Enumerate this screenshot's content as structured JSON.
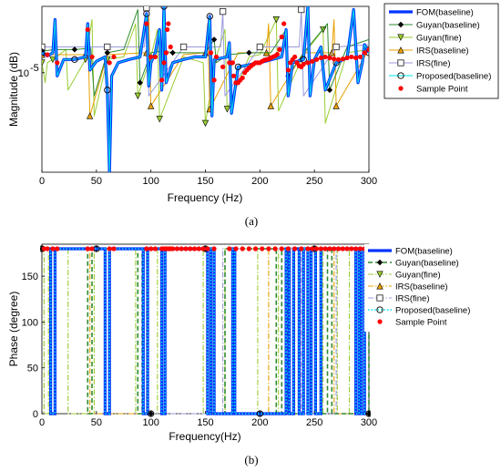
{
  "chart_data": [
    {
      "type": "line",
      "caption": "(a)",
      "xlabel": "Frequency (Hz)",
      "ylabel": "Magnitude (dB)",
      "xlim": [
        0,
        300
      ],
      "xticks": [
        0,
        50,
        100,
        150,
        200,
        250,
        300
      ],
      "yscale": "log",
      "yticks": [
        {
          "value": 1e-05,
          "label": "10"
        }
      ],
      "ytick_exponent": "-5",
      "ylim": [
        1e-08,
        0.001
      ],
      "grid": false,
      "legend_position": "outside-right",
      "legend": [
        "FOM(baseline)",
        "Guyan(baseline)",
        "Guyan(fine)",
        "IRS(baseline)",
        "IRS(fine)",
        "Proposed(baseline)",
        "Sample Point"
      ],
      "series": [
        {
          "name": "FOM(baseline)",
          "color": "#0033ff",
          "style": "solid-thick",
          "marker": "none",
          "x": [
            0,
            5,
            10,
            12,
            14,
            20,
            30,
            40,
            42,
            44,
            50,
            58,
            60,
            62,
            64,
            70,
            80,
            90,
            96,
            98,
            100,
            104,
            108,
            110,
            112,
            114,
            120,
            130,
            140,
            150,
            154,
            156,
            158,
            170,
            172,
            174,
            180,
            200,
            220,
            224,
            226,
            230,
            240,
            244,
            246,
            250,
            256,
            260,
            270,
            280,
            286,
            290,
            294,
            296,
            300
          ],
          "y": [
            4e-05,
            3.2e-05,
            4e-05,
            0.0004,
            8e-06,
            2.5e-05,
            2.5e-05,
            3e-05,
            0.0003,
            1.2e-05,
            2.2e-05,
            3e-05,
            3e-06,
            1e-08,
            8e-06,
            2e-05,
            2.5e-05,
            3e-05,
            0.0006,
            4e-06,
            2e-05,
            4e-05,
            0.0002,
            3e-06,
            0.001,
            5e-06,
            2e-05,
            2.5e-05,
            3e-05,
            3e-05,
            0.0005,
            5e-07,
            2.5e-05,
            3e-05,
            8e-05,
            6e-07,
            1.5e-05,
            2e-05,
            3e-05,
            0.0002,
            2e-06,
            2e-05,
            2.5e-05,
            0.001,
            2e-06,
            2.5e-05,
            6e-05,
            3e-06,
            2e-05,
            2.8e-05,
            0.0008,
            5e-06,
            2e-05,
            7e-05,
            4e-05
          ]
        },
        {
          "name": "Guyan(baseline)",
          "color": "#2e8b2e",
          "style": "solid",
          "marker": "diamond",
          "x": [
            0,
            12,
            22,
            30,
            45,
            48,
            60,
            75,
            88,
            90,
            100,
            110,
            120,
            135,
            150,
            158,
            160,
            170,
            190,
            210,
            224,
            226,
            240,
            262,
            264,
            280,
            300
          ],
          "y": [
            4.5e-05,
            5e-05,
            5e-05,
            5e-05,
            5.5e-05,
            2e-06,
            4e-05,
            5e-05,
            0.0008,
            5e-06,
            4e-05,
            4.5e-05,
            4e-05,
            4e-05,
            4e-05,
            0.0001,
            2e-05,
            3.5e-05,
            4e-05,
            4e-05,
            0.0002,
            8e-06,
            4e-05,
            0.0003,
            3e-06,
            6e-05,
            0.0001
          ]
        },
        {
          "name": "Guyan(fine)",
          "color": "#9acd32",
          "style": "solid",
          "marker": "triangle-down",
          "x": [
            0,
            3,
            5,
            10,
            22,
            24,
            40,
            46,
            48,
            60,
            75,
            86,
            88,
            100,
            106,
            108,
            130,
            148,
            150,
            160,
            168,
            170,
            190,
            200,
            215,
            217,
            240,
            258,
            260,
            280,
            300
          ],
          "y": [
            2e-05,
            5e-06,
            2e-05,
            2.5e-05,
            5e-05,
            3e-06,
            2.5e-05,
            0.0004,
            5e-07,
            2.5e-05,
            3e-05,
            0.0003,
            2e-06,
            3e-05,
            0.0002,
            4e-07,
            3e-05,
            2e-05,
            3e-07,
            3e-05,
            0.0002,
            8e-07,
            3e-05,
            3.5e-05,
            0.0004,
            7e-07,
            3.5e-05,
            0.0002,
            3e-07,
            4e-05,
            5e-05
          ]
        },
        {
          "name": "IRS(baseline)",
          "color": "#e8a000",
          "style": "solid",
          "marker": "triangle-up",
          "x": [
            0,
            20,
            40,
            42,
            44,
            60,
            96,
            98,
            100,
            130,
            150,
            152,
            154,
            180,
            206,
            208,
            210,
            240,
            266,
            268,
            270,
            300
          ],
          "y": [
            3.5e-05,
            3.5e-05,
            3.5e-05,
            0.0003,
            5e-07,
            3.5e-05,
            4e-05,
            0.0005,
            1e-06,
            3.5e-05,
            4e-05,
            0.0003,
            8e-07,
            4e-05,
            4e-05,
            0.0003,
            1e-06,
            4e-05,
            4e-05,
            0.0004,
            1e-06,
            5e-05
          ]
        },
        {
          "name": "IRS(fine)",
          "color": "#9999dd",
          "style": "solid",
          "marker": "square",
          "x": [
            0,
            30,
            60,
            94,
            96,
            98,
            130,
            164,
            166,
            168,
            200,
            236,
            238,
            240,
            270,
            300
          ],
          "y": [
            6e-05,
            6e-05,
            6e-05,
            6e-05,
            0.0009,
            2e-06,
            6e-05,
            6e-05,
            0.0007,
            2e-06,
            6e-05,
            6e-05,
            0.0008,
            2e-06,
            6e-05,
            7e-05
          ]
        },
        {
          "name": "Proposed(baseline)",
          "color": "#00e5e5",
          "style": "solid",
          "marker": "circle",
          "x": [
            0,
            5,
            10,
            12,
            14,
            20,
            30,
            40,
            42,
            44,
            50,
            58,
            60,
            62,
            64,
            70,
            80,
            90,
            96,
            98,
            100,
            104,
            108,
            110,
            112,
            114,
            120,
            130,
            140,
            150,
            154,
            156,
            158,
            170,
            172,
            174,
            180,
            200,
            220,
            224,
            226,
            230,
            240,
            244,
            246,
            250,
            256,
            260,
            270,
            280,
            286,
            290,
            294,
            296,
            300
          ],
          "y": [
            4e-05,
            3.2e-05,
            4e-05,
            0.0004,
            8e-06,
            2.5e-05,
            2.5e-05,
            3e-05,
            0.0003,
            1.2e-05,
            2.2e-05,
            3e-05,
            3e-06,
            1e-08,
            8e-06,
            2e-05,
            2.5e-05,
            3e-05,
            0.0006,
            4e-06,
            2e-05,
            4e-05,
            0.0002,
            3e-06,
            0.001,
            5e-06,
            2e-05,
            2.5e-05,
            3e-05,
            3e-05,
            0.0005,
            5e-07,
            2.5e-05,
            3e-05,
            8e-05,
            6e-07,
            1.5e-05,
            2e-05,
            3e-05,
            0.0002,
            2e-06,
            2e-05,
            2.5e-05,
            0.001,
            2e-06,
            2.5e-05,
            6e-05,
            3e-06,
            2e-05,
            2.8e-05,
            0.0008,
            5e-06,
            2e-05,
            7e-05,
            4e-05
          ]
        },
        {
          "name": "Sample Point",
          "color": "#ff0000",
          "style": "markers",
          "marker": "dot",
          "x": [
            5,
            14,
            42,
            46,
            62,
            66,
            96,
            100,
            104,
            110,
            112,
            114,
            115,
            116,
            118,
            155,
            158,
            160,
            166,
            172,
            175,
            176,
            178,
            180,
            182,
            184,
            186,
            188,
            190,
            192,
            194,
            196,
            198,
            200,
            202,
            204,
            206,
            208,
            210,
            212,
            214,
            216,
            218,
            220,
            222,
            226,
            228,
            230,
            232,
            234,
            236,
            238,
            240,
            244,
            248,
            252,
            256,
            260,
            264,
            268,
            272,
            276,
            280,
            284,
            288,
            292,
            296,
            300
          ],
          "y": [
            3.5e-05,
            2e-05,
            0.0002,
            3e-05,
            2e-05,
            3e-05,
            0.0003,
            3e-05,
            3e-05,
            6e-06,
            2e-05,
            4e-05,
            0.0002,
            0.0003,
            6e-05,
            4e-05,
            6e-06,
            3e-05,
            1.5e-05,
            2e-05,
            2e-05,
            8e-06,
            5e-06,
            5e-06,
            6e-06,
            7e-06,
            1e-05,
            1.2e-05,
            1.4e-05,
            1.6e-05,
            1.8e-05,
            2e-05,
            2e-05,
            2e-05,
            2.2e-05,
            2.4e-05,
            2.5e-05,
            2.6e-05,
            2.8e-05,
            3e-05,
            3.2e-05,
            3.6e-05,
            5e-05,
            0.00012,
            0.0003,
            1.2e-05,
            2e-05,
            2.5e-05,
            3e-05,
            2e-05,
            1.6e-05,
            1.5e-05,
            1.8e-05,
            2e-05,
            2.2e-05,
            2.5e-05,
            2.8e-05,
            3e-05,
            2.8e-05,
            2.6e-05,
            2.5e-05,
            2.6e-05,
            2.8e-05,
            3e-05,
            2.8e-05,
            3e-05,
            4e-05,
            5e-05
          ]
        }
      ]
    },
    {
      "type": "line",
      "caption": "(b)",
      "xlabel": "Frequency(Hz)",
      "ylabel": "Phase (degree)",
      "xlim": [
        0,
        300
      ],
      "ylim": [
        0,
        180
      ],
      "xticks": [
        0,
        50,
        100,
        150,
        200,
        250,
        300
      ],
      "yticks": [
        0,
        50,
        100,
        150
      ],
      "grid": false,
      "legend_position": "top-right",
      "legend": [
        "FOM(baseline)",
        "Guyan(baseline)",
        "Guyan(fine)",
        "IRS(baseline)",
        "IRS(fine)",
        "Proposed(baseline)",
        "Sample Point"
      ],
      "phase_jumps": {
        "FOM(baseline)": [
          8,
          12,
          58,
          62,
          93,
          97,
          110,
          113,
          152,
          155,
          158,
          175,
          177,
          224,
          227,
          231,
          236,
          240,
          244,
          247,
          251,
          256,
          288,
          291,
          293,
          296
        ],
        "Guyan(baseline)": [
          42,
          46,
          88,
          92,
          155,
          168,
          215,
          220,
          225,
          262,
          266,
          300
        ],
        "Guyan(fine)": [
          2,
          6,
          24,
          48,
          86,
          106,
          148,
          168,
          198,
          217,
          232,
          258,
          271,
          282
        ],
        "IRS(baseline)": [
          44,
          96,
          152,
          208,
          268,
          296
        ],
        "IRS(fine)": [
          96,
          166,
          238,
          270
        ],
        "Proposed(baseline)": [
          8,
          12,
          58,
          62,
          93,
          97,
          110,
          113,
          152,
          155,
          158,
          175,
          177,
          224,
          227,
          231,
          236,
          240,
          244,
          247,
          251,
          256,
          288,
          291,
          293,
          296
        ]
      },
      "series": [
        {
          "name": "FOM(baseline)",
          "color": "#0033ff",
          "style": "solid-thick",
          "marker": "none"
        },
        {
          "name": "Guyan(baseline)",
          "color": "#2e8b2e",
          "style": "dashed",
          "marker": "diamond"
        },
        {
          "name": "Guyan(fine)",
          "color": "#9acd32",
          "style": "dash-dot",
          "marker": "triangle-down"
        },
        {
          "name": "IRS(baseline)",
          "color": "#e8a000",
          "style": "dash-dot",
          "marker": "triangle-up"
        },
        {
          "name": "IRS(fine)",
          "color": "#9999dd",
          "style": "dash-dot",
          "marker": "square"
        },
        {
          "name": "Proposed(baseline)",
          "color": "#00e5e5",
          "style": "dotted",
          "marker": "circle"
        },
        {
          "name": "Sample Point",
          "color": "#ff0000",
          "style": "markers",
          "marker": "dot",
          "x": [
            2,
            5,
            10,
            14,
            42,
            46,
            62,
            66,
            96,
            100,
            104,
            110,
            112,
            114,
            116,
            118,
            120,
            124,
            128,
            132,
            136,
            140,
            144,
            148,
            152,
            158,
            172,
            178,
            184,
            190,
            196,
            202,
            208,
            214,
            220,
            226,
            232,
            238,
            244,
            248,
            252,
            256,
            260,
            264,
            268,
            272,
            276,
            280,
            284,
            288,
            292,
            296,
            300
          ],
          "y": [
            180,
            180,
            180,
            180,
            180,
            180,
            180,
            180,
            180,
            180,
            180,
            180,
            180,
            180,
            180,
            180,
            180,
            180,
            180,
            180,
            180,
            180,
            180,
            180,
            180,
            180,
            180,
            180,
            180,
            180,
            180,
            180,
            180,
            180,
            180,
            180,
            180,
            180,
            180,
            180,
            180,
            180,
            180,
            180,
            180,
            180,
            180,
            180,
            180,
            180,
            180,
            180,
            180
          ]
        }
      ]
    }
  ]
}
